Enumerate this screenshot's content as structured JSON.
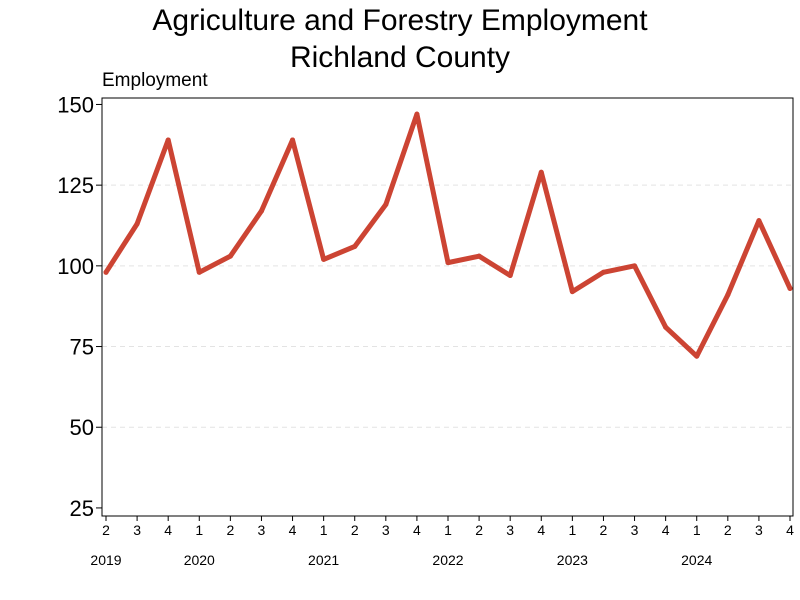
{
  "chart_data": {
    "type": "line",
    "title": [
      "Agriculture and Forestry Employment",
      "Richland County"
    ],
    "ylabel": "Employment",
    "xlabel": "",
    "ylim": [
      25,
      150
    ],
    "yticks": [
      25,
      50,
      75,
      100,
      125,
      150
    ],
    "grid": "horizontal dashed",
    "categories": [
      {
        "year": "2019",
        "quarter": "2"
      },
      {
        "year": "2019",
        "quarter": "3"
      },
      {
        "year": "2019",
        "quarter": "4"
      },
      {
        "year": "2020",
        "quarter": "1"
      },
      {
        "year": "2020",
        "quarter": "2"
      },
      {
        "year": "2020",
        "quarter": "3"
      },
      {
        "year": "2020",
        "quarter": "4"
      },
      {
        "year": "2021",
        "quarter": "1"
      },
      {
        "year": "2021",
        "quarter": "2"
      },
      {
        "year": "2021",
        "quarter": "3"
      },
      {
        "year": "2021",
        "quarter": "4"
      },
      {
        "year": "2022",
        "quarter": "1"
      },
      {
        "year": "2022",
        "quarter": "2"
      },
      {
        "year": "2022",
        "quarter": "3"
      },
      {
        "year": "2022",
        "quarter": "4"
      },
      {
        "year": "2023",
        "quarter": "1"
      },
      {
        "year": "2023",
        "quarter": "2"
      },
      {
        "year": "2023",
        "quarter": "3"
      },
      {
        "year": "2023",
        "quarter": "4"
      },
      {
        "year": "2024",
        "quarter": "1"
      },
      {
        "year": "2024",
        "quarter": "2"
      },
      {
        "year": "2024",
        "quarter": "3"
      },
      {
        "year": "2024",
        "quarter": "4"
      }
    ],
    "years": [
      "2019",
      "2020",
      "2021",
      "2022",
      "2023",
      "2024"
    ],
    "series": [
      {
        "color": "#cc4433",
        "values": [
          98,
          113,
          139,
          98,
          103,
          117,
          139,
          102,
          106,
          119,
          147,
          101,
          103,
          97,
          129,
          92,
          98,
          100,
          81,
          72,
          91,
          114,
          93
        ]
      }
    ]
  }
}
